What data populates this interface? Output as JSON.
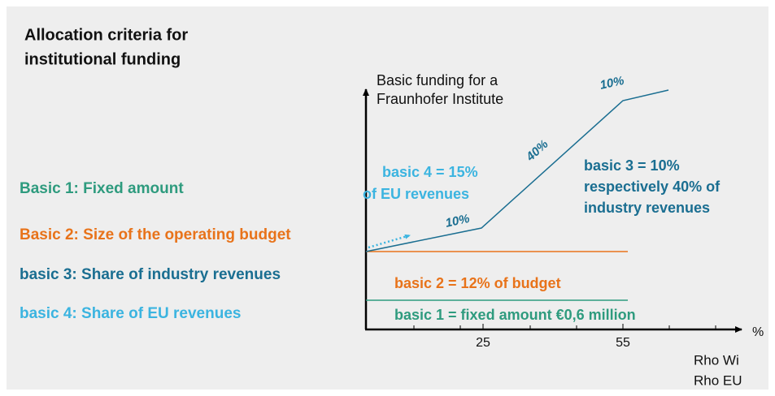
{
  "title": [
    "Allocation criteria for",
    "institutional funding"
  ],
  "y_axis_label": [
    "Basic funding for a",
    "Fraunhofer Institute"
  ],
  "x_axis_unit": "%",
  "x_axis_names": [
    "Rho Wi",
    "Rho EU"
  ],
  "x_ticks": [
    "25",
    "55"
  ],
  "legend": [
    "Basic 1: Fixed amount",
    "Basic 2: Size of the operating budget",
    "basic 3: Share of industry revenues",
    "basic 4: Share of EU revenues"
  ],
  "annotations": {
    "basic1": "basic 1 = fixed amount €0,6 million",
    "basic2": "basic 2 = 12% of budget",
    "basic3": [
      "basic 3 = 10%",
      "respectively  40% of",
      "industry revenues"
    ],
    "basic4": [
      "basic 4 = 15%",
      "of EU revenues"
    ],
    "slope_labels": [
      "10%",
      "40%",
      "10%"
    ]
  }
}
